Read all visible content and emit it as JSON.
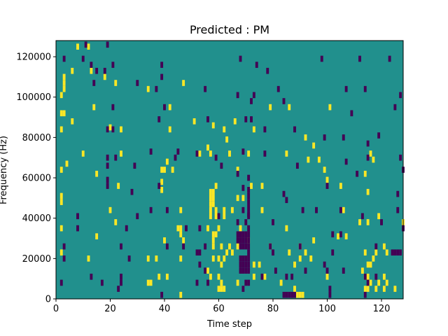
{
  "chart_data": {
    "type": "heatmap",
    "title": "Predicted : PM",
    "xlabel": "Time step",
    "ylabel": "Frequency (Hz)",
    "xlim": [
      0,
      128
    ],
    "ylim": [
      0,
      128000
    ],
    "xticks": [
      0,
      20,
      40,
      60,
      80,
      100,
      120
    ],
    "yticks": [
      0,
      20000,
      40000,
      60000,
      80000,
      100000,
      120000
    ],
    "grid": false,
    "colors": {
      "background": "#21908d",
      "high": "#fde725",
      "low": "#440154"
    },
    "yellow_cells": [
      [
        8,
        125000
      ],
      [
        12,
        125000
      ],
      [
        3,
        110000
      ],
      [
        6,
        113000
      ],
      [
        13,
        113000
      ],
      [
        18,
        110000
      ],
      [
        3,
        107000
      ],
      [
        3,
        104000
      ],
      [
        22,
        107000
      ],
      [
        2,
        101000
      ],
      [
        34,
        104000
      ],
      [
        47,
        107000
      ],
      [
        2,
        92000
      ],
      [
        3,
        92000
      ],
      [
        6,
        88000
      ],
      [
        14,
        95000
      ],
      [
        20,
        85000
      ],
      [
        42,
        95000
      ],
      [
        51,
        88000
      ],
      [
        58,
        86000
      ],
      [
        66,
        88000
      ],
      [
        73,
        84000
      ],
      [
        79,
        95000
      ],
      [
        86,
        95000
      ],
      [
        101,
        95000
      ],
      [
        2,
        84000
      ],
      [
        24,
        84000
      ],
      [
        42,
        84000
      ],
      [
        56,
        75000
      ],
      [
        62,
        84000
      ],
      [
        63,
        79000
      ],
      [
        92,
        80000
      ],
      [
        95,
        76000
      ],
      [
        10,
        72000
      ],
      [
        24,
        72000
      ],
      [
        41,
        68000
      ],
      [
        53,
        72000
      ],
      [
        57,
        72000
      ],
      [
        64,
        72000
      ],
      [
        71,
        72000
      ],
      [
        85,
        72000
      ],
      [
        93,
        69000
      ],
      [
        97,
        69000
      ],
      [
        116,
        72000
      ],
      [
        117,
        69000
      ],
      [
        2,
        64000
      ],
      [
        4,
        67000
      ],
      [
        15,
        62000
      ],
      [
        39,
        64000
      ],
      [
        40,
        64000
      ],
      [
        43,
        64000
      ],
      [
        67,
        64000
      ],
      [
        99,
        64000
      ],
      [
        114,
        62000
      ],
      [
        39,
        58000
      ],
      [
        39,
        54000
      ],
      [
        23,
        56000
      ],
      [
        59,
        56000
      ],
      [
        72,
        56000
      ],
      [
        76,
        56000
      ],
      [
        100,
        59000
      ],
      [
        105,
        56000
      ],
      [
        115,
        53000
      ],
      [
        57,
        53000
      ],
      [
        58,
        53000
      ],
      [
        57,
        50000
      ],
      [
        58,
        50000
      ],
      [
        57,
        47000
      ],
      [
        58,
        47000
      ],
      [
        57,
        44000
      ],
      [
        59,
        44000
      ],
      [
        62,
        44000
      ],
      [
        67,
        50000
      ],
      [
        69,
        50000
      ],
      [
        2,
        51000
      ],
      [
        2,
        48000
      ],
      [
        20,
        44000
      ],
      [
        46,
        44000
      ],
      [
        57,
        41000
      ],
      [
        59,
        41000
      ],
      [
        62,
        41000
      ],
      [
        65,
        44000
      ],
      [
        76,
        44000
      ],
      [
        106,
        44000
      ],
      [
        115,
        38000
      ],
      [
        119,
        41000
      ],
      [
        128,
        38000
      ],
      [
        2,
        35000
      ],
      [
        15,
        31000
      ],
      [
        22,
        38000
      ],
      [
        45,
        35000
      ],
      [
        46,
        35000
      ],
      [
        46,
        32000
      ],
      [
        56,
        35000
      ],
      [
        58,
        32000
      ],
      [
        59,
        32000
      ],
      [
        58,
        29000
      ],
      [
        60,
        35000
      ],
      [
        68,
        35000
      ],
      [
        85,
        35000
      ],
      [
        104,
        31000
      ],
      [
        107,
        31000
      ],
      [
        112,
        38000
      ],
      [
        40,
        29000
      ],
      [
        47,
        29000
      ],
      [
        58,
        26000
      ],
      [
        61,
        26000
      ],
      [
        63,
        23000
      ],
      [
        64,
        26000
      ],
      [
        65,
        23000
      ],
      [
        67,
        26000
      ],
      [
        71,
        29000
      ],
      [
        79,
        26000
      ],
      [
        86,
        23000
      ],
      [
        90,
        26000
      ],
      [
        92,
        23000
      ],
      [
        95,
        29000
      ],
      [
        114,
        23000
      ],
      [
        118,
        23000
      ],
      [
        121,
        26000
      ],
      [
        2,
        23000
      ],
      [
        12,
        20000
      ],
      [
        34,
        20000
      ],
      [
        37,
        20000
      ],
      [
        46,
        20000
      ],
      [
        58,
        20000
      ],
      [
        60,
        20000
      ],
      [
        61,
        17000
      ],
      [
        62,
        20000
      ],
      [
        73,
        17000
      ],
      [
        75,
        17000
      ],
      [
        88,
        17000
      ],
      [
        90,
        20000
      ],
      [
        94,
        20000
      ],
      [
        115,
        17000
      ],
      [
        116,
        17000
      ],
      [
        117,
        20000
      ],
      [
        122,
        23000
      ],
      [
        38,
        11000
      ],
      [
        41,
        11000
      ],
      [
        56,
        14000
      ],
      [
        57,
        11000
      ],
      [
        60,
        11000
      ],
      [
        61,
        8000
      ],
      [
        73,
        11000
      ],
      [
        77,
        11000
      ],
      [
        100,
        11000
      ],
      [
        113,
        14000
      ],
      [
        114,
        11000
      ],
      [
        115,
        11000
      ],
      [
        116,
        8000
      ],
      [
        119,
        8000
      ],
      [
        121,
        11000
      ],
      [
        122,
        8000
      ],
      [
        34,
        8000
      ],
      [
        35,
        8000
      ],
      [
        60,
        5000
      ],
      [
        61,
        5000
      ],
      [
        62,
        5000
      ],
      [
        67,
        8000
      ],
      [
        83,
        8000
      ],
      [
        88,
        5000
      ],
      [
        89,
        2000
      ],
      [
        90,
        2000
      ],
      [
        91,
        2000
      ],
      [
        114,
        5000
      ],
      [
        115,
        5000
      ],
      [
        118,
        5000
      ],
      [
        121,
        5000
      ],
      [
        125,
        5000
      ],
      [
        46,
        2000
      ]
    ],
    "purple_cells": [
      [
        11,
        126000
      ],
      [
        19,
        126000
      ],
      [
        3,
        119000
      ],
      [
        10,
        119000
      ],
      [
        13,
        116000
      ],
      [
        21,
        116000
      ],
      [
        15,
        113000
      ],
      [
        18,
        113000
      ],
      [
        39,
        116000
      ],
      [
        39,
        110000
      ],
      [
        68,
        119000
      ],
      [
        74,
        116000
      ],
      [
        78,
        113000
      ],
      [
        98,
        119000
      ],
      [
        112,
        119000
      ],
      [
        123,
        119000
      ],
      [
        14,
        107000
      ],
      [
        30,
        107000
      ],
      [
        37,
        104000
      ],
      [
        55,
        104000
      ],
      [
        73,
        101000
      ],
      [
        82,
        104000
      ],
      [
        107,
        104000
      ],
      [
        114,
        104000
      ],
      [
        127,
        101000
      ],
      [
        21,
        95000
      ],
      [
        40,
        95000
      ],
      [
        67,
        101000
      ],
      [
        72,
        98000
      ],
      [
        84,
        98000
      ],
      [
        109,
        92000
      ],
      [
        125,
        95000
      ],
      [
        19,
        84000
      ],
      [
        21,
        84000
      ],
      [
        38,
        89000
      ],
      [
        56,
        89000
      ],
      [
        70,
        89000
      ],
      [
        72,
        89000
      ],
      [
        77,
        84000
      ],
      [
        88,
        84000
      ],
      [
        99,
        80000
      ],
      [
        106,
        80000
      ],
      [
        115,
        77000
      ],
      [
        119,
        81000
      ],
      [
        19,
        70000
      ],
      [
        22,
        70000
      ],
      [
        35,
        73000
      ],
      [
        45,
        73000
      ],
      [
        52,
        72000
      ],
      [
        59,
        70000
      ],
      [
        69,
        73000
      ],
      [
        77,
        72000
      ],
      [
        89,
        66000
      ],
      [
        107,
        68000
      ],
      [
        115,
        70000
      ],
      [
        127,
        70000
      ],
      [
        19,
        66000
      ],
      [
        29,
        66000
      ],
      [
        44,
        70000
      ],
      [
        61,
        66000
      ],
      [
        67,
        62000
      ],
      [
        71,
        60000
      ],
      [
        111,
        62000
      ],
      [
        128,
        64000
      ],
      [
        19,
        59000
      ],
      [
        19,
        56000
      ],
      [
        28,
        53000
      ],
      [
        38,
        56000
      ],
      [
        69,
        55000
      ],
      [
        71,
        54000
      ],
      [
        71,
        51000
      ],
      [
        71,
        48000
      ],
      [
        71,
        45000
      ],
      [
        71,
        42000
      ],
      [
        84,
        52000
      ],
      [
        85,
        49000
      ],
      [
        100,
        56000
      ],
      [
        126,
        52000
      ],
      [
        8,
        41000
      ],
      [
        30,
        41000
      ],
      [
        35,
        44000
      ],
      [
        41,
        44000
      ],
      [
        60,
        41000
      ],
      [
        69,
        44000
      ],
      [
        71,
        41000
      ],
      [
        91,
        44000
      ],
      [
        96,
        44000
      ],
      [
        105,
        44000
      ],
      [
        126,
        44000
      ],
      [
        113,
        41000
      ],
      [
        8,
        35000
      ],
      [
        26,
        35000
      ],
      [
        48,
        35000
      ],
      [
        53,
        35000
      ],
      [
        67,
        38000
      ],
      [
        70,
        38000
      ],
      [
        71,
        35000
      ],
      [
        80,
        38000
      ],
      [
        102,
        32000
      ],
      [
        105,
        32000
      ],
      [
        120,
        38000
      ],
      [
        128,
        35000
      ],
      [
        67,
        32000
      ],
      [
        68,
        32000
      ],
      [
        69,
        32000
      ],
      [
        70,
        32000
      ],
      [
        71,
        32000
      ],
      [
        67,
        29000
      ],
      [
        68,
        29000
      ],
      [
        69,
        29000
      ],
      [
        70,
        29000
      ],
      [
        71,
        29000
      ],
      [
        68,
        26000
      ],
      [
        69,
        26000
      ],
      [
        70,
        26000
      ],
      [
        71,
        26000
      ],
      [
        3,
        26000
      ],
      [
        24,
        26000
      ],
      [
        41,
        26000
      ],
      [
        47,
        26000
      ],
      [
        53,
        23000
      ],
      [
        55,
        26000
      ],
      [
        79,
        26000
      ],
      [
        80,
        23000
      ],
      [
        90,
        26000
      ],
      [
        102,
        23000
      ],
      [
        118,
        26000
      ],
      [
        124,
        23000
      ],
      [
        125,
        23000
      ],
      [
        126,
        23000
      ],
      [
        127,
        23000
      ],
      [
        68,
        20000
      ],
      [
        69,
        20000
      ],
      [
        70,
        20000
      ],
      [
        71,
        20000
      ],
      [
        68,
        17000
      ],
      [
        69,
        17000
      ],
      [
        70,
        17000
      ],
      [
        71,
        17000
      ],
      [
        68,
        14000
      ],
      [
        69,
        14000
      ],
      [
        70,
        14000
      ],
      [
        71,
        14000
      ],
      [
        3,
        20000
      ],
      [
        27,
        20000
      ],
      [
        52,
        23000
      ],
      [
        53,
        17000
      ],
      [
        55,
        14000
      ],
      [
        71,
        23000
      ],
      [
        76,
        11000
      ],
      [
        81,
        14000
      ],
      [
        87,
        11000
      ],
      [
        92,
        14000
      ],
      [
        99,
        17000
      ],
      [
        100,
        14000
      ],
      [
        114,
        11000
      ],
      [
        118,
        11000
      ],
      [
        2,
        8000
      ],
      [
        13,
        11000
      ],
      [
        17,
        8000
      ],
      [
        24,
        11000
      ],
      [
        24,
        8000
      ],
      [
        23,
        5000
      ],
      [
        52,
        8000
      ],
      [
        56,
        8000
      ],
      [
        69,
        5000
      ],
      [
        70,
        8000
      ],
      [
        71,
        8000
      ],
      [
        85,
        11000
      ],
      [
        101,
        5000
      ],
      [
        106,
        14000
      ],
      [
        115,
        8000
      ],
      [
        84,
        2000
      ],
      [
        85,
        2000
      ],
      [
        86,
        2000
      ],
      [
        87,
        2000
      ],
      [
        88,
        2000
      ],
      [
        39,
        2000
      ],
      [
        101,
        2000
      ],
      [
        114,
        2000
      ]
    ]
  }
}
